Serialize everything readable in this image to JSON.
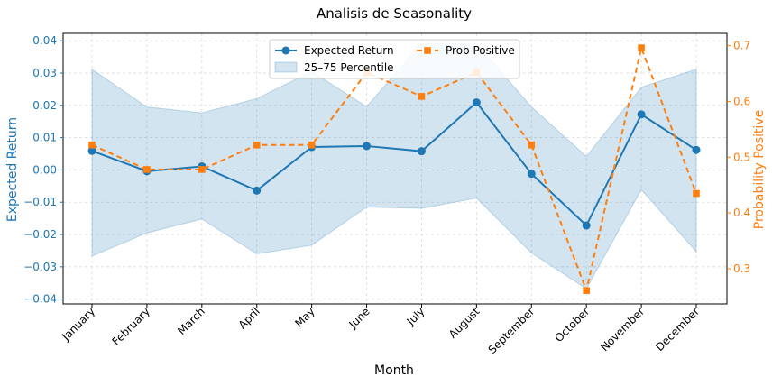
{
  "chart_data": {
    "type": "line",
    "title": "Analisis de Seasonality",
    "xlabel": "Month",
    "ylabel": "Expected Return",
    "y2label": "Probability Positive",
    "categories": [
      "January",
      "February",
      "March",
      "April",
      "May",
      "June",
      "July",
      "August",
      "September",
      "October",
      "November",
      "December"
    ],
    "ylim": [
      -0.0415,
      0.0423
    ],
    "y2lim": [
      0.237,
      0.722
    ],
    "yticks": [
      -0.04,
      -0.03,
      -0.02,
      -0.01,
      0.0,
      0.01,
      0.02,
      0.03,
      0.04
    ],
    "ytick_labels": [
      "−0.04",
      "−0.03",
      "−0.02",
      "−0.01",
      "0.00",
      "0.01",
      "0.02",
      "0.03",
      "0.04"
    ],
    "y2ticks": [
      0.3,
      0.4,
      0.5,
      0.6,
      0.7
    ],
    "y2tick_labels": [
      "0.3",
      "0.4",
      "0.5",
      "0.6",
      "0.7"
    ],
    "grid": true,
    "legend_position": "top-center",
    "series": [
      {
        "name": "Expected Return",
        "axis": "left",
        "color": "#1f77b4",
        "marker": "circle",
        "line_style": "solid",
        "values": [
          0.0059,
          -0.0004,
          0.0011,
          -0.0064,
          0.0071,
          0.0074,
          0.0058,
          0.0209,
          -0.0012,
          -0.0172,
          0.0172,
          0.0062
        ]
      },
      {
        "name": "Prob Positive",
        "axis": "right",
        "color": "#ff7f0e",
        "marker": "square",
        "line_style": "dashed",
        "values": [
          0.522,
          0.478,
          0.478,
          0.522,
          0.522,
          0.652,
          0.609,
          0.652,
          0.522,
          0.261,
          0.696,
          0.435
        ]
      }
    ],
    "band": {
      "name": "25–75 Percentile",
      "axis": "left",
      "color": "#1f77b4",
      "lower": [
        -0.0267,
        -0.0195,
        -0.0152,
        -0.026,
        -0.0233,
        -0.0115,
        -0.0119,
        -0.0087,
        -0.0257,
        -0.0368,
        -0.0061,
        -0.0253
      ],
      "upper": [
        0.0312,
        0.0195,
        0.0177,
        0.0221,
        0.0305,
        0.0196,
        0.0392,
        0.0392,
        0.0195,
        0.0042,
        0.0256,
        0.0312
      ]
    }
  }
}
